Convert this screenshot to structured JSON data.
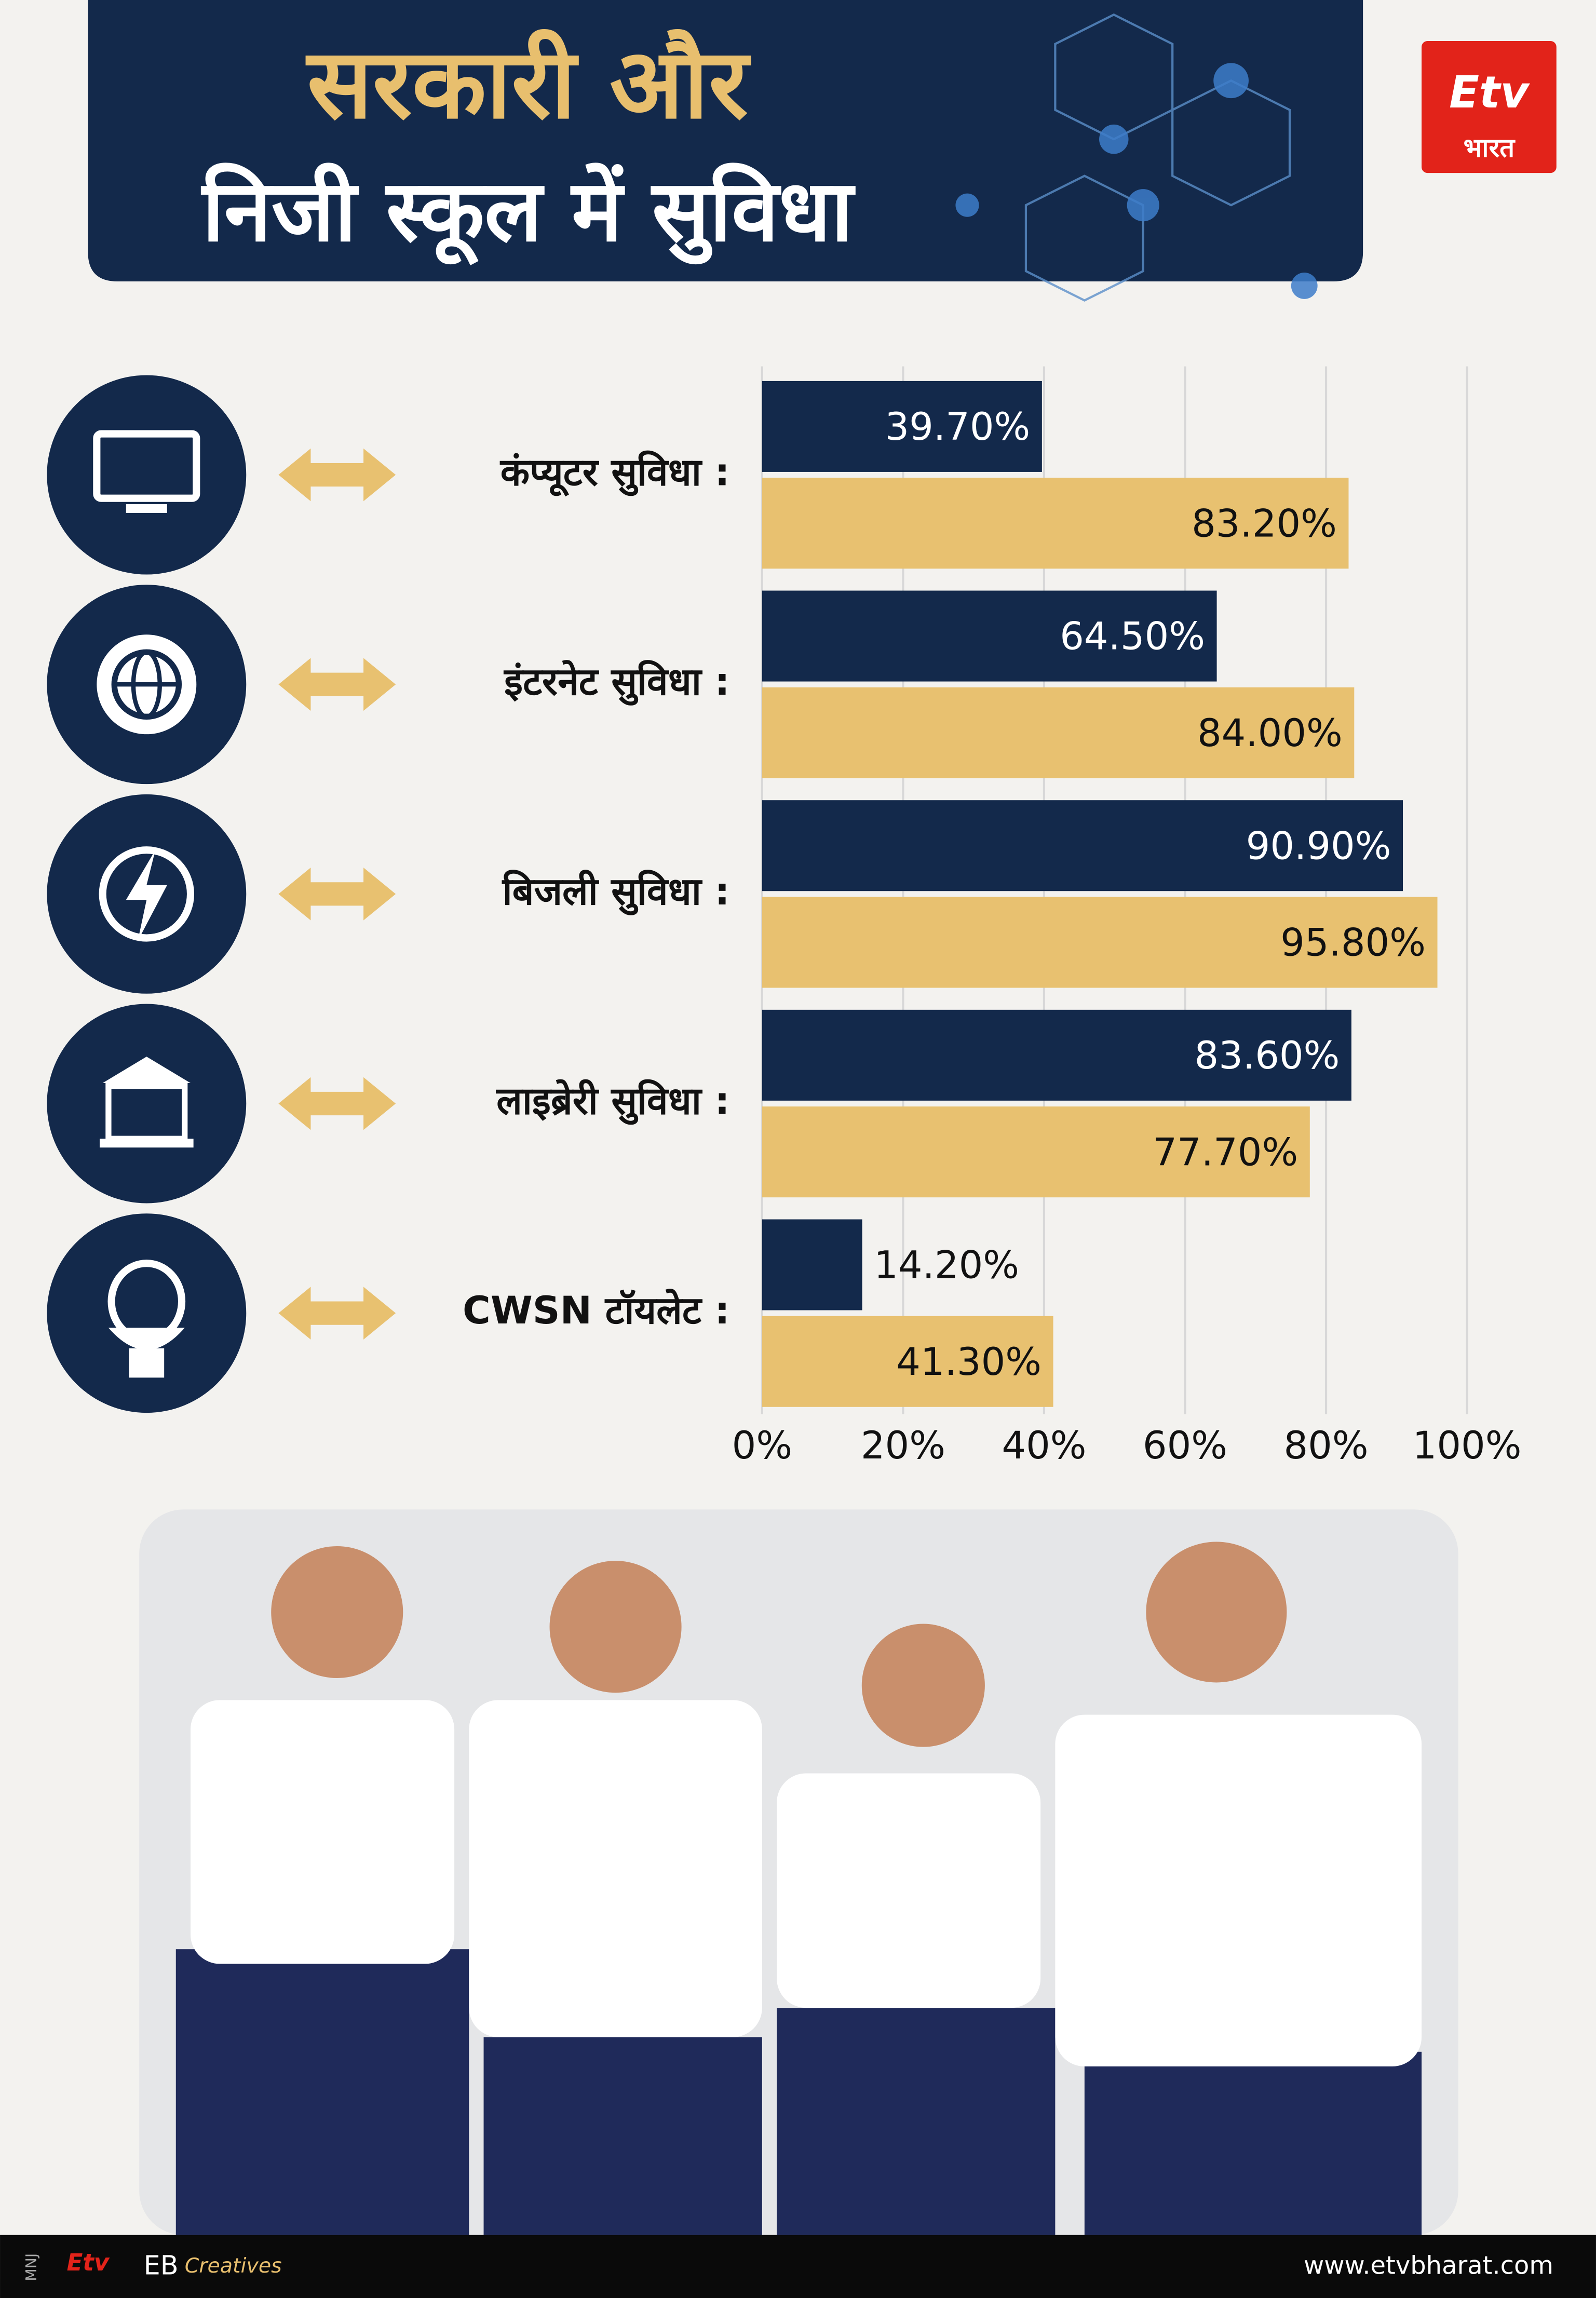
{
  "chart_data": {
    "type": "bar",
    "orientation": "horizontal",
    "title": "सरकारी और",
    "subtitle": "निजी स्कूल में सुविधा",
    "categories": [
      "कंप्यूटर सुविधा :",
      "इंटरनेट सुविधा :",
      "बिजली सुविधा :",
      "लाइब्रेरी सुविधा :",
      "CWSN टॉयलेट :"
    ],
    "series": [
      {
        "color": "#13294b",
        "values": [
          39.7,
          64.5,
          90.9,
          83.6,
          14.2
        ],
        "value_labels": [
          "39.70%",
          "64.50%",
          "90.90%",
          "83.60%",
          "14.20%"
        ]
      },
      {
        "color": "#e8c170",
        "values": [
          83.2,
          84.0,
          95.8,
          77.7,
          41.3
        ],
        "value_labels": [
          "83.20%",
          "84.00%",
          "95.80%",
          "77.70%",
          "41.30%"
        ]
      }
    ],
    "xlim": [
      0,
      100
    ],
    "xticks": [
      {
        "value": 0,
        "label": "0%"
      },
      {
        "value": 20,
        "label": "20%"
      },
      {
        "value": 40,
        "label": "40%"
      },
      {
        "value": 60,
        "label": "60%"
      },
      {
        "value": 80,
        "label": "80%"
      },
      {
        "value": 100,
        "label": "100%"
      }
    ],
    "grid": true
  },
  "branding": {
    "logo_text": "भारत",
    "footer_left": "MNJ",
    "footer_brand": "EB",
    "footer_creatives": "Creatives",
    "website": "www.etvbharat.com"
  }
}
